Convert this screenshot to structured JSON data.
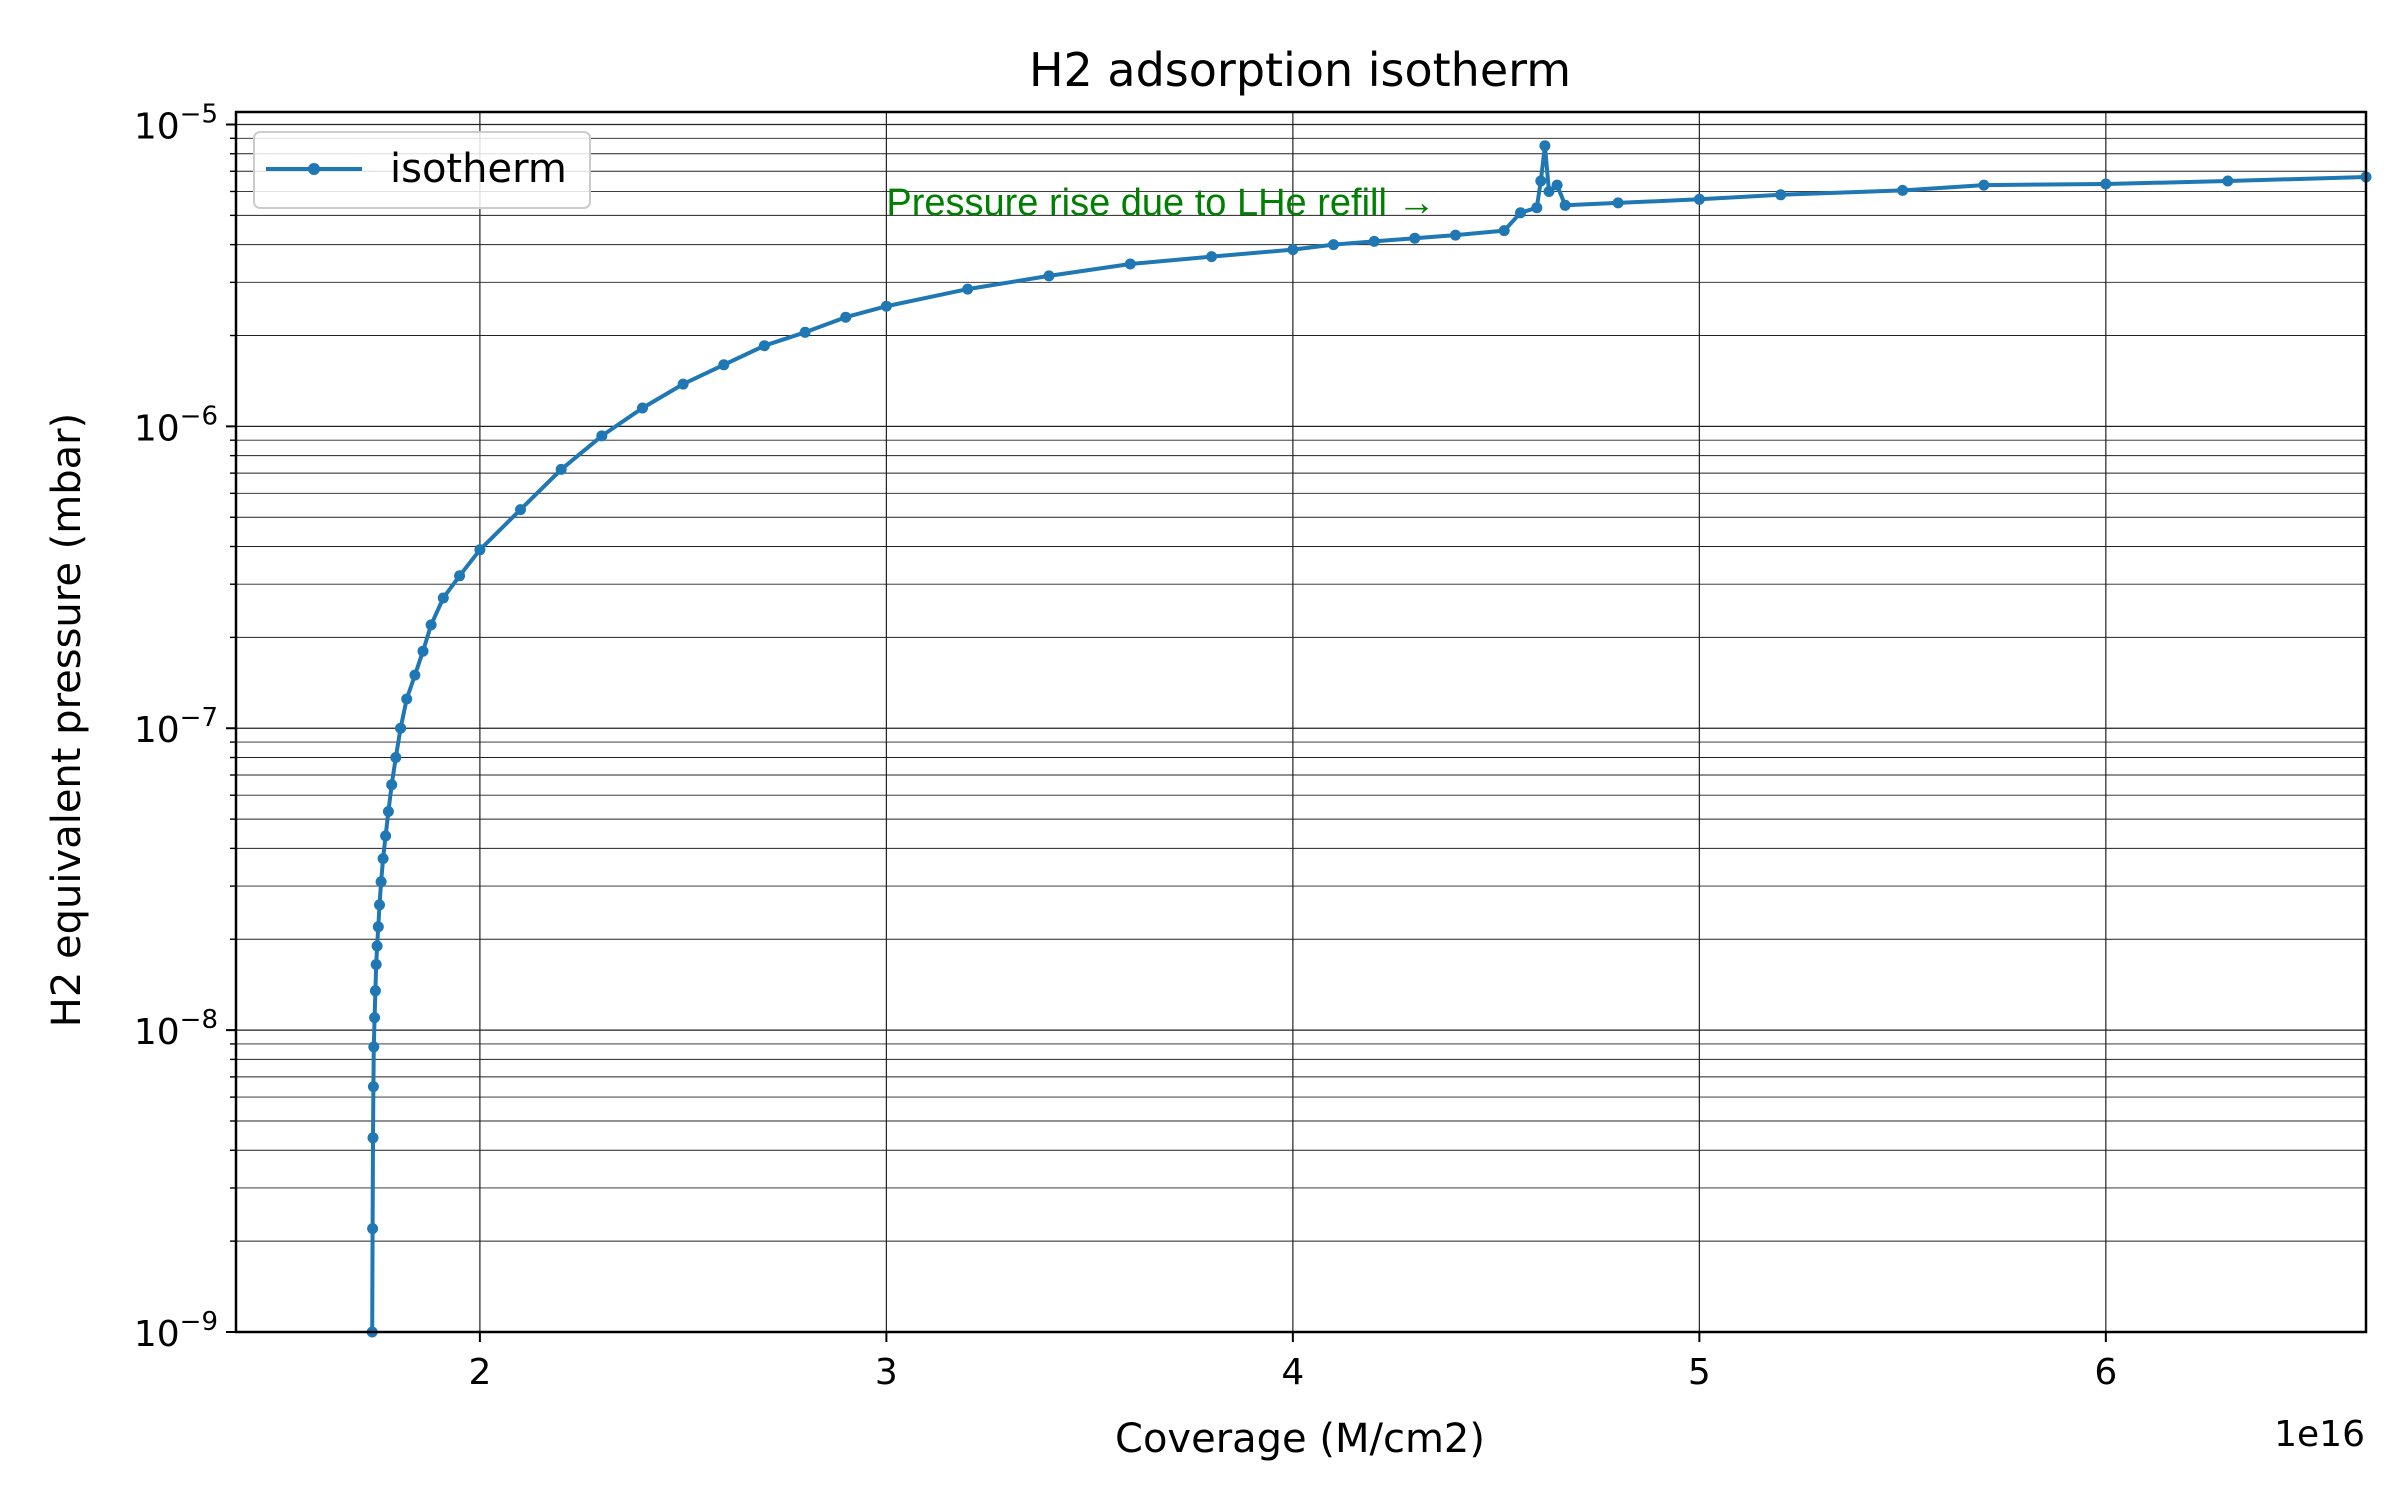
{
  "chart_data": {
    "type": "line",
    "title": "H2 adsorption isotherm",
    "xlabel": "Coverage (M/cm2)",
    "ylabel": "H2 equivalent pressure (mbar)",
    "x_offset_label": "1e16",
    "x_scale_factor": 1e+16,
    "xlim": [
      1.4e+16,
      6.64e+16
    ],
    "ylim": [
      1e-09,
      1.1e-05
    ],
    "yscale": "log",
    "x_ticks": [
      2e+16,
      3e+16,
      4e+16,
      5e+16,
      6e+16
    ],
    "x_tick_labels": [
      "2",
      "3",
      "4",
      "5",
      "6"
    ],
    "y_ticks": [
      1e-09,
      1e-08,
      1e-07,
      1e-06,
      1e-05
    ],
    "y_tick_labels": [
      {
        "base": "10",
        "exp": "−9"
      },
      {
        "base": "10",
        "exp": "−8"
      },
      {
        "base": "10",
        "exp": "−7"
      },
      {
        "base": "10",
        "exp": "−6"
      },
      {
        "base": "10",
        "exp": "−5"
      }
    ],
    "grid": true,
    "legend_position": "upper-left",
    "colors": {
      "series": "#1f77b4",
      "annotation": "#008000",
      "grid": "#222222"
    },
    "series": [
      {
        "name": "isotherm",
        "marker": "circle",
        "points": [
          [
            1.735e+16,
            1e-09
          ],
          [
            1.736e+16,
            2.2e-09
          ],
          [
            1.737e+16,
            4.4e-09
          ],
          [
            1.738e+16,
            6.5e-09
          ],
          [
            1.739e+16,
            8.8e-09
          ],
          [
            1.741e+16,
            1.1e-08
          ],
          [
            1.743e+16,
            1.35e-08
          ],
          [
            1.745e+16,
            1.65e-08
          ],
          [
            1.747e+16,
            1.9e-08
          ],
          [
            1.75e+16,
            2.2e-08
          ],
          [
            1.753e+16,
            2.6e-08
          ],
          [
            1.757e+16,
            3.1e-08
          ],
          [
            1.762e+16,
            3.7e-08
          ],
          [
            1.768e+16,
            4.4e-08
          ],
          [
            1.775e+16,
            5.3e-08
          ],
          [
            1.783e+16,
            6.5e-08
          ],
          [
            1.793e+16,
            8e-08
          ],
          [
            1.805e+16,
            1e-07
          ],
          [
            1.82e+16,
            1.25e-07
          ],
          [
            1.84e+16,
            1.5e-07
          ],
          [
            1.86e+16,
            1.8e-07
          ],
          [
            1.88e+16,
            2.2e-07
          ],
          [
            1.91e+16,
            2.7e-07
          ],
          [
            1.95e+16,
            3.2e-07
          ],
          [
            2e+16,
            3.9e-07
          ],
          [
            2.1e+16,
            5.3e-07
          ],
          [
            2.2e+16,
            7.2e-07
          ],
          [
            2.3e+16,
            9.3e-07
          ],
          [
            2.4e+16,
            1.15e-06
          ],
          [
            2.5e+16,
            1.38e-06
          ],
          [
            2.6e+16,
            1.6e-06
          ],
          [
            2.7e+16,
            1.85e-06
          ],
          [
            2.8e+16,
            2.05e-06
          ],
          [
            2.9e+16,
            2.3e-06
          ],
          [
            3e+16,
            2.5e-06
          ],
          [
            3.2e+16,
            2.85e-06
          ],
          [
            3.4e+16,
            3.15e-06
          ],
          [
            3.6e+16,
            3.45e-06
          ],
          [
            3.8e+16,
            3.65e-06
          ],
          [
            4e+16,
            3.85e-06
          ],
          [
            4.1e+16,
            4e-06
          ],
          [
            4.2e+16,
            4.1e-06
          ],
          [
            4.3e+16,
            4.2e-06
          ],
          [
            4.4e+16,
            4.3e-06
          ],
          [
            4.52e+16,
            4.45e-06
          ],
          [
            4.56e+16,
            5.1e-06
          ],
          [
            4.6e+16,
            5.3e-06
          ],
          [
            4.61e+16,
            6.5e-06
          ],
          [
            4.62e+16,
            8.5e-06
          ],
          [
            4.63e+16,
            6e-06
          ],
          [
            4.65e+16,
            6.3e-06
          ],
          [
            4.67e+16,
            5.4e-06
          ],
          [
            4.8e+16,
            5.5e-06
          ],
          [
            5e+16,
            5.65e-06
          ],
          [
            5.2e+16,
            5.85e-06
          ],
          [
            5.5e+16,
            6.05e-06
          ],
          [
            5.7e+16,
            6.3e-06
          ],
          [
            6e+16,
            6.35e-06
          ],
          [
            6.3e+16,
            6.5e-06
          ],
          [
            6.64e+16,
            6.7e-06
          ]
        ]
      }
    ],
    "annotations": [
      {
        "text": "Pressure rise due to LHe refill →",
        "x": 3e+16,
        "y": 5.5e-06,
        "color": "#008000"
      }
    ]
  }
}
